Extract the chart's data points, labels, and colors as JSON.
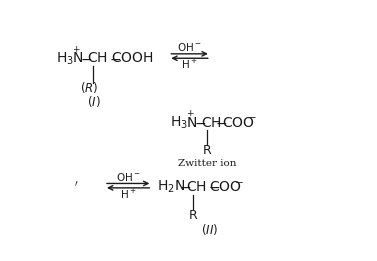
{
  "background_color": "#ffffff",
  "figsize": [
    3.77,
    2.61
  ],
  "dpi": 100,
  "font_color": "#1a1a1a",
  "fs": 10.0,
  "fs_small": 8.5,
  "fs_super": 6.5,
  "fs_label": 7.5
}
